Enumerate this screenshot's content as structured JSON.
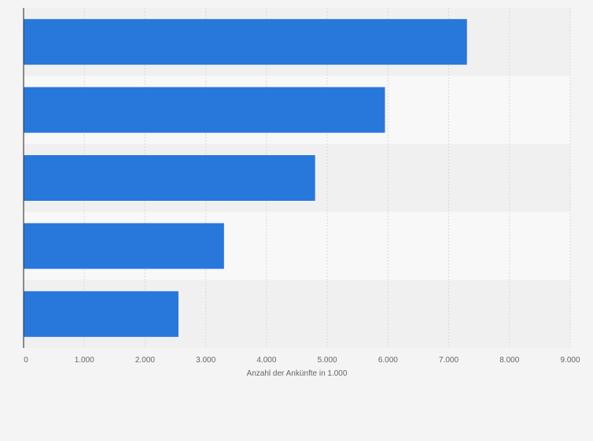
{
  "chart_data": {
    "type": "bar",
    "orientation": "horizontal",
    "categories": [
      "",
      "",
      "",
      "",
      ""
    ],
    "values": [
      7300,
      5950,
      4800,
      3300,
      2550
    ],
    "xlabel": "Anzahl der Ankünfte in 1.000",
    "ylabel": "",
    "xlim": [
      0,
      9000
    ],
    "xticks": [
      0,
      1000,
      2000,
      3000,
      4000,
      5000,
      6000,
      7000,
      8000,
      9000
    ],
    "xtick_labels": [
      "0",
      "1.000",
      "2.000",
      "3.000",
      "4.000",
      "5.000",
      "6.000",
      "7.000",
      "8.000",
      "9.000"
    ],
    "grid": true,
    "colors": {
      "bar": "#2878dc",
      "band_dark": "#f0f0f0",
      "band_light": "#f8f8f8",
      "grid": "#d9d9d9",
      "axis": "#444444",
      "label": "#666666"
    }
  }
}
